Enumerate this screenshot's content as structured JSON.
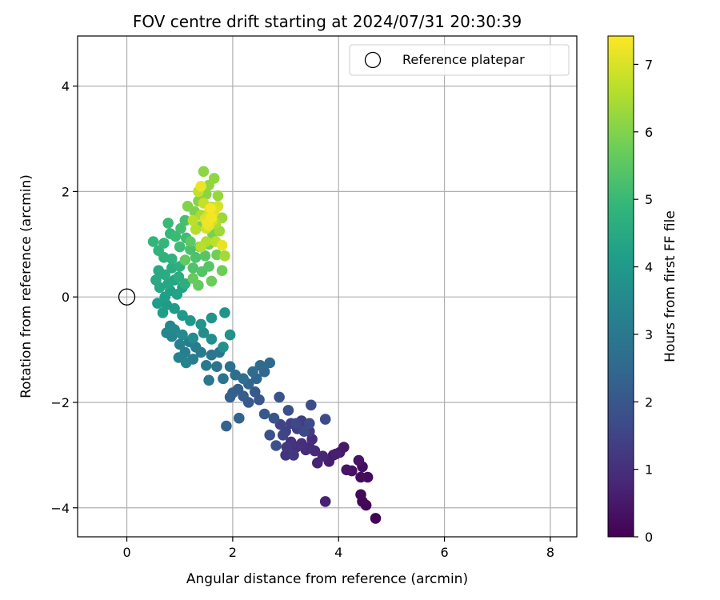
{
  "chart_data": {
    "type": "scatter",
    "title": "FOV centre drift starting at 2024/07/31 20:30:39",
    "xlabel": "Angular distance from reference (arcmin)",
    "ylabel": "Rotation from reference (arcmin)",
    "xlim": [
      -0.93,
      8.5
    ],
    "ylim": [
      -4.55,
      4.95
    ],
    "xticks": [
      0,
      2,
      4,
      6,
      8
    ],
    "yticks": [
      -4,
      -2,
      0,
      2,
      4
    ],
    "xtick_labels": [
      "0",
      "2",
      "4",
      "6",
      "8"
    ],
    "ytick_labels": [
      "−4",
      "−2",
      "0",
      "2",
      "4"
    ],
    "grid": true,
    "legend": {
      "position": "top-right",
      "entries": [
        "Reference platepar"
      ]
    },
    "reference_point": {
      "x": 0,
      "y": 0,
      "marker": "open-circle"
    },
    "colorbar": {
      "label": "Hours from first FF file",
      "range": [
        0,
        7.42
      ],
      "ticks": [
        0,
        1,
        2,
        3,
        4,
        5,
        6,
        7
      ],
      "tick_labels": [
        "0",
        "1",
        "2",
        "3",
        "4",
        "5",
        "6",
        "7"
      ],
      "colormap": "viridis"
    },
    "points_xyc": [
      [
        4.7,
        -4.2,
        0.02
      ],
      [
        4.52,
        -3.95,
        0.07
      ],
      [
        4.45,
        -3.88,
        0.12
      ],
      [
        4.42,
        -3.75,
        0.17
      ],
      [
        4.55,
        -3.42,
        0.2
      ],
      [
        4.42,
        -3.42,
        0.24
      ],
      [
        4.45,
        -3.22,
        0.29
      ],
      [
        4.25,
        -3.3,
        0.33
      ],
      [
        4.38,
        -3.1,
        0.38
      ],
      [
        4.15,
        -3.28,
        0.42
      ],
      [
        4.1,
        -2.85,
        0.47
      ],
      [
        4.02,
        -2.95,
        0.51
      ],
      [
        3.9,
        -3.0,
        0.56
      ],
      [
        3.82,
        -3.12,
        0.6
      ],
      [
        3.95,
        -2.98,
        0.65
      ],
      [
        3.75,
        -3.88,
        0.7
      ],
      [
        3.6,
        -3.15,
        0.74
      ],
      [
        3.7,
        -3.02,
        0.78
      ],
      [
        3.55,
        -2.92,
        0.82
      ],
      [
        3.45,
        -2.85,
        0.87
      ],
      [
        3.5,
        -2.7,
        0.91
      ],
      [
        3.38,
        -2.9,
        0.95
      ],
      [
        3.3,
        -2.78,
        1.0
      ],
      [
        3.2,
        -2.85,
        1.04
      ],
      [
        3.1,
        -2.75,
        1.08
      ],
      [
        3.0,
        -3.0,
        1.12
      ],
      [
        3.02,
        -2.85,
        1.16
      ],
      [
        3.15,
        -3.0,
        1.2
      ],
      [
        3.45,
        -2.55,
        1.25
      ],
      [
        3.4,
        -2.42,
        1.29
      ],
      [
        3.3,
        -2.35,
        1.33
      ],
      [
        3.22,
        -2.5,
        1.37
      ],
      [
        3.1,
        -2.4,
        1.41
      ],
      [
        3.0,
        -2.55,
        1.45
      ],
      [
        2.9,
        -2.42,
        1.5
      ],
      [
        2.95,
        -2.62,
        1.54
      ],
      [
        3.2,
        -2.4,
        1.58
      ],
      [
        3.35,
        -2.55,
        1.62
      ],
      [
        3.45,
        -2.4,
        1.66
      ],
      [
        3.75,
        -2.32,
        1.7
      ],
      [
        3.48,
        -2.05,
        1.75
      ],
      [
        3.05,
        -2.15,
        1.79
      ],
      [
        2.82,
        -2.82,
        1.83
      ],
      [
        2.7,
        -2.62,
        1.87
      ],
      [
        2.88,
        -1.9,
        1.91
      ],
      [
        2.78,
        -2.3,
        1.95
      ],
      [
        2.6,
        -2.22,
        2.0
      ],
      [
        2.5,
        -1.95,
        2.04
      ],
      [
        2.42,
        -1.8,
        2.08
      ],
      [
        2.3,
        -2.0,
        2.12
      ],
      [
        2.2,
        -1.88,
        2.16
      ],
      [
        2.1,
        -1.75,
        2.2
      ],
      [
        2.0,
        -1.82,
        2.25
      ],
      [
        1.95,
        -1.9,
        2.29
      ],
      [
        2.12,
        -2.3,
        2.33
      ],
      [
        1.88,
        -2.45,
        2.37
      ],
      [
        2.3,
        -1.65,
        2.41
      ],
      [
        2.45,
        -1.55,
        2.45
      ],
      [
        2.6,
        -1.42,
        2.5
      ],
      [
        2.7,
        -1.25,
        2.54
      ],
      [
        2.52,
        -1.3,
        2.58
      ],
      [
        2.38,
        -1.42,
        2.62
      ],
      [
        2.2,
        -1.55,
        2.66
      ],
      [
        2.05,
        -1.48,
        2.7
      ],
      [
        1.95,
        -1.32,
        2.74
      ],
      [
        1.82,
        -1.55,
        2.78
      ],
      [
        1.7,
        -1.32,
        2.83
      ],
      [
        1.6,
        -1.1,
        2.87
      ],
      [
        1.75,
        -1.05,
        2.91
      ],
      [
        1.55,
        -1.58,
        2.95
      ],
      [
        1.5,
        -1.3,
        3.0
      ],
      [
        1.4,
        -1.05,
        3.04
      ],
      [
        1.3,
        -0.95,
        3.08
      ],
      [
        1.25,
        -1.18,
        3.12
      ],
      [
        1.18,
        -0.85,
        3.16
      ],
      [
        1.1,
        -1.05,
        3.2
      ],
      [
        1.0,
        -0.9,
        3.25
      ],
      [
        0.98,
        -1.15,
        3.29
      ],
      [
        1.12,
        -1.25,
        3.33
      ],
      [
        0.85,
        -0.75,
        3.37
      ],
      [
        0.75,
        -0.68,
        3.41
      ],
      [
        0.82,
        -0.55,
        3.45
      ],
      [
        0.9,
        -0.62,
        3.5
      ],
      [
        1.05,
        -0.72,
        3.54
      ],
      [
        1.25,
        -0.78,
        3.58
      ],
      [
        1.45,
        -0.68,
        3.62
      ],
      [
        1.6,
        -0.8,
        3.66
      ],
      [
        1.82,
        -0.95,
        3.7
      ],
      [
        1.95,
        -0.72,
        3.75
      ],
      [
        1.85,
        -0.3,
        3.79
      ],
      [
        1.6,
        -0.4,
        3.83
      ],
      [
        1.4,
        -0.52,
        3.87
      ],
      [
        1.2,
        -0.45,
        3.91
      ],
      [
        1.05,
        -0.35,
        3.95
      ],
      [
        0.9,
        -0.22,
        4.0
      ],
      [
        0.75,
        -0.15,
        4.04
      ],
      [
        0.68,
        -0.3,
        4.08
      ],
      [
        0.58,
        -0.12,
        4.12
      ],
      [
        0.72,
        0.0,
        4.16
      ],
      [
        0.82,
        0.12,
        4.2
      ],
      [
        0.95,
        0.05,
        4.25
      ],
      [
        1.05,
        0.18,
        4.29
      ],
      [
        0.9,
        0.32,
        4.33
      ],
      [
        0.78,
        0.25,
        4.37
      ],
      [
        0.62,
        0.18,
        4.41
      ],
      [
        0.55,
        0.32,
        4.45
      ],
      [
        0.6,
        0.5,
        4.5
      ],
      [
        0.72,
        0.42,
        4.54
      ],
      [
        0.85,
        0.55,
        4.58
      ],
      [
        0.98,
        0.38,
        4.62
      ],
      [
        1.1,
        0.25,
        4.66
      ],
      [
        1.0,
        0.58,
        4.7
      ],
      [
        0.85,
        0.72,
        4.75
      ],
      [
        0.7,
        0.75,
        4.79
      ],
      [
        0.6,
        0.88,
        4.83
      ],
      [
        0.5,
        1.05,
        4.87
      ],
      [
        0.7,
        1.02,
        4.91
      ],
      [
        0.82,
        1.2,
        4.95
      ],
      [
        0.78,
        1.4,
        5.0
      ],
      [
        0.92,
        1.15,
        5.04
      ],
      [
        1.0,
        0.95,
        5.08
      ],
      [
        1.12,
        1.12,
        5.12
      ],
      [
        1.02,
        1.3,
        5.16
      ],
      [
        1.1,
        1.45,
        5.2
      ],
      [
        1.2,
        0.9,
        5.25
      ],
      [
        1.3,
        0.75,
        5.29
      ],
      [
        1.25,
        0.55,
        5.33
      ],
      [
        1.42,
        0.48,
        5.37
      ],
      [
        1.55,
        0.58,
        5.41
      ],
      [
        1.48,
        0.78,
        5.45
      ],
      [
        1.38,
        0.95,
        5.5
      ],
      [
        1.2,
        1.05,
        5.54
      ],
      [
        1.1,
        0.7,
        5.58
      ],
      [
        1.35,
        0.22,
        5.62
      ],
      [
        1.25,
        0.35,
        5.66
      ],
      [
        1.6,
        0.3,
        5.7
      ],
      [
        1.8,
        0.5,
        5.75
      ],
      [
        1.7,
        0.8,
        5.79
      ],
      [
        1.55,
        1.0,
        5.83
      ],
      [
        1.62,
        1.2,
        5.87
      ],
      [
        1.42,
        1.35,
        5.91
      ],
      [
        1.28,
        1.62,
        5.95
      ],
      [
        1.15,
        1.72,
        6.0
      ],
      [
        1.35,
        1.82,
        6.04
      ],
      [
        1.5,
        1.95,
        6.08
      ],
      [
        1.45,
        2.38,
        6.12
      ],
      [
        1.65,
        2.25,
        6.16
      ],
      [
        1.55,
        2.12,
        6.2
      ],
      [
        1.72,
        1.92,
        6.25
      ],
      [
        1.8,
        1.5,
        6.29
      ],
      [
        1.75,
        1.25,
        6.33
      ],
      [
        1.85,
        0.78,
        6.37
      ],
      [
        1.6,
        1.7,
        6.41
      ],
      [
        1.4,
        1.55,
        6.45
      ],
      [
        1.68,
        1.4,
        6.5
      ],
      [
        1.5,
        1.05,
        6.54
      ],
      [
        1.3,
        1.28,
        6.58
      ],
      [
        1.4,
        0.95,
        6.62
      ],
      [
        1.25,
        1.45,
        6.66
      ],
      [
        1.68,
        1.05,
        6.7
      ],
      [
        1.35,
        2.0,
        6.75
      ],
      [
        1.45,
        1.78,
        6.79
      ],
      [
        1.55,
        1.6,
        6.83
      ],
      [
        1.62,
        1.45,
        6.87
      ],
      [
        1.5,
        1.3,
        6.91
      ],
      [
        1.72,
        1.72,
        6.95
      ],
      [
        1.58,
        1.55,
        7.0
      ],
      [
        1.48,
        1.48,
        7.04
      ],
      [
        1.65,
        1.62,
        7.08
      ],
      [
        1.55,
        1.35,
        7.12
      ],
      [
        1.8,
        0.98,
        7.16
      ],
      [
        1.4,
        2.1,
        7.2
      ],
      [
        1.52,
        1.4,
        7.25
      ],
      [
        1.6,
        1.5,
        7.29
      ],
      [
        1.58,
        1.68,
        7.33
      ]
    ]
  }
}
